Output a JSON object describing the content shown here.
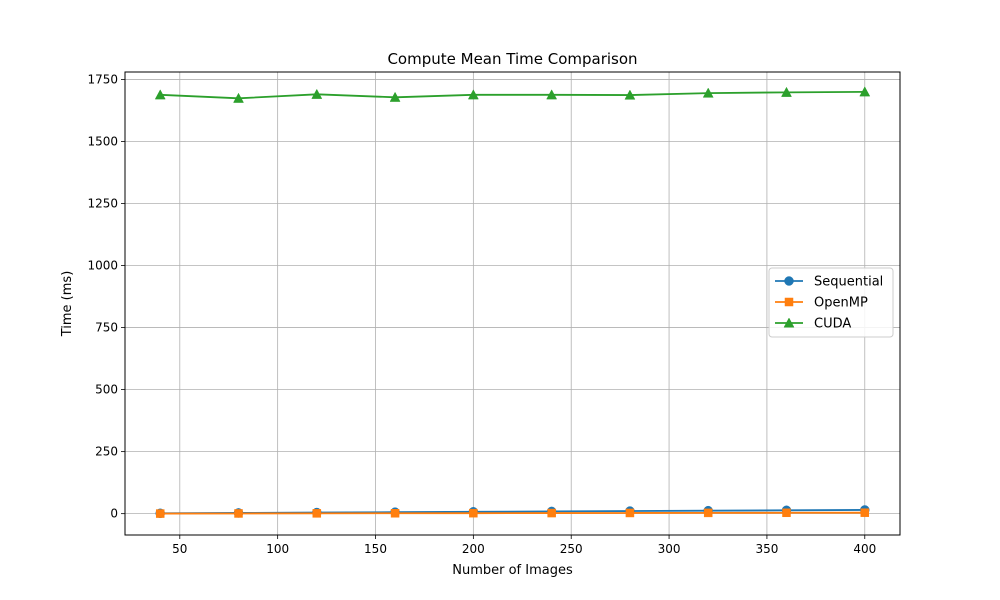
{
  "chart_data": {
    "type": "line",
    "title": "Compute Mean Time Comparison",
    "xlabel": "Number of Images",
    "ylabel": "Time (ms)",
    "x": [
      40,
      80,
      120,
      160,
      200,
      240,
      280,
      320,
      360,
      400
    ],
    "xlim": [
      22,
      418
    ],
    "ylim": [
      -86,
      1780
    ],
    "xticks": [
      50,
      100,
      150,
      200,
      250,
      300,
      350,
      400
    ],
    "yticks": [
      0,
      250,
      500,
      750,
      1000,
      1250,
      1500,
      1750
    ],
    "xtick_labels": [
      "50",
      "100",
      "150",
      "200",
      "250",
      "300",
      "350",
      "400"
    ],
    "ytick_labels": [
      "0",
      "250",
      "500",
      "750",
      "1000",
      "1250",
      "1500",
      "1750"
    ],
    "grid": true,
    "legend_position": "center-right",
    "series": [
      {
        "name": "Sequential",
        "color": "#1f77b4",
        "marker": "circle",
        "values": [
          1.5,
          3,
          4.5,
          6,
          7.5,
          9,
          10.5,
          12,
          13.5,
          15
        ]
      },
      {
        "name": "OpenMP",
        "color": "#ff7f0e",
        "marker": "square",
        "values": [
          0.4,
          0.8,
          1.2,
          1.6,
          2.0,
          2.4,
          2.8,
          3.2,
          3.6,
          4.0
        ]
      },
      {
        "name": "CUDA",
        "color": "#2ca02c",
        "marker": "triangle",
        "values": [
          1688,
          1674,
          1690,
          1678,
          1688,
          1688,
          1687,
          1695,
          1698,
          1700
        ]
      }
    ]
  }
}
